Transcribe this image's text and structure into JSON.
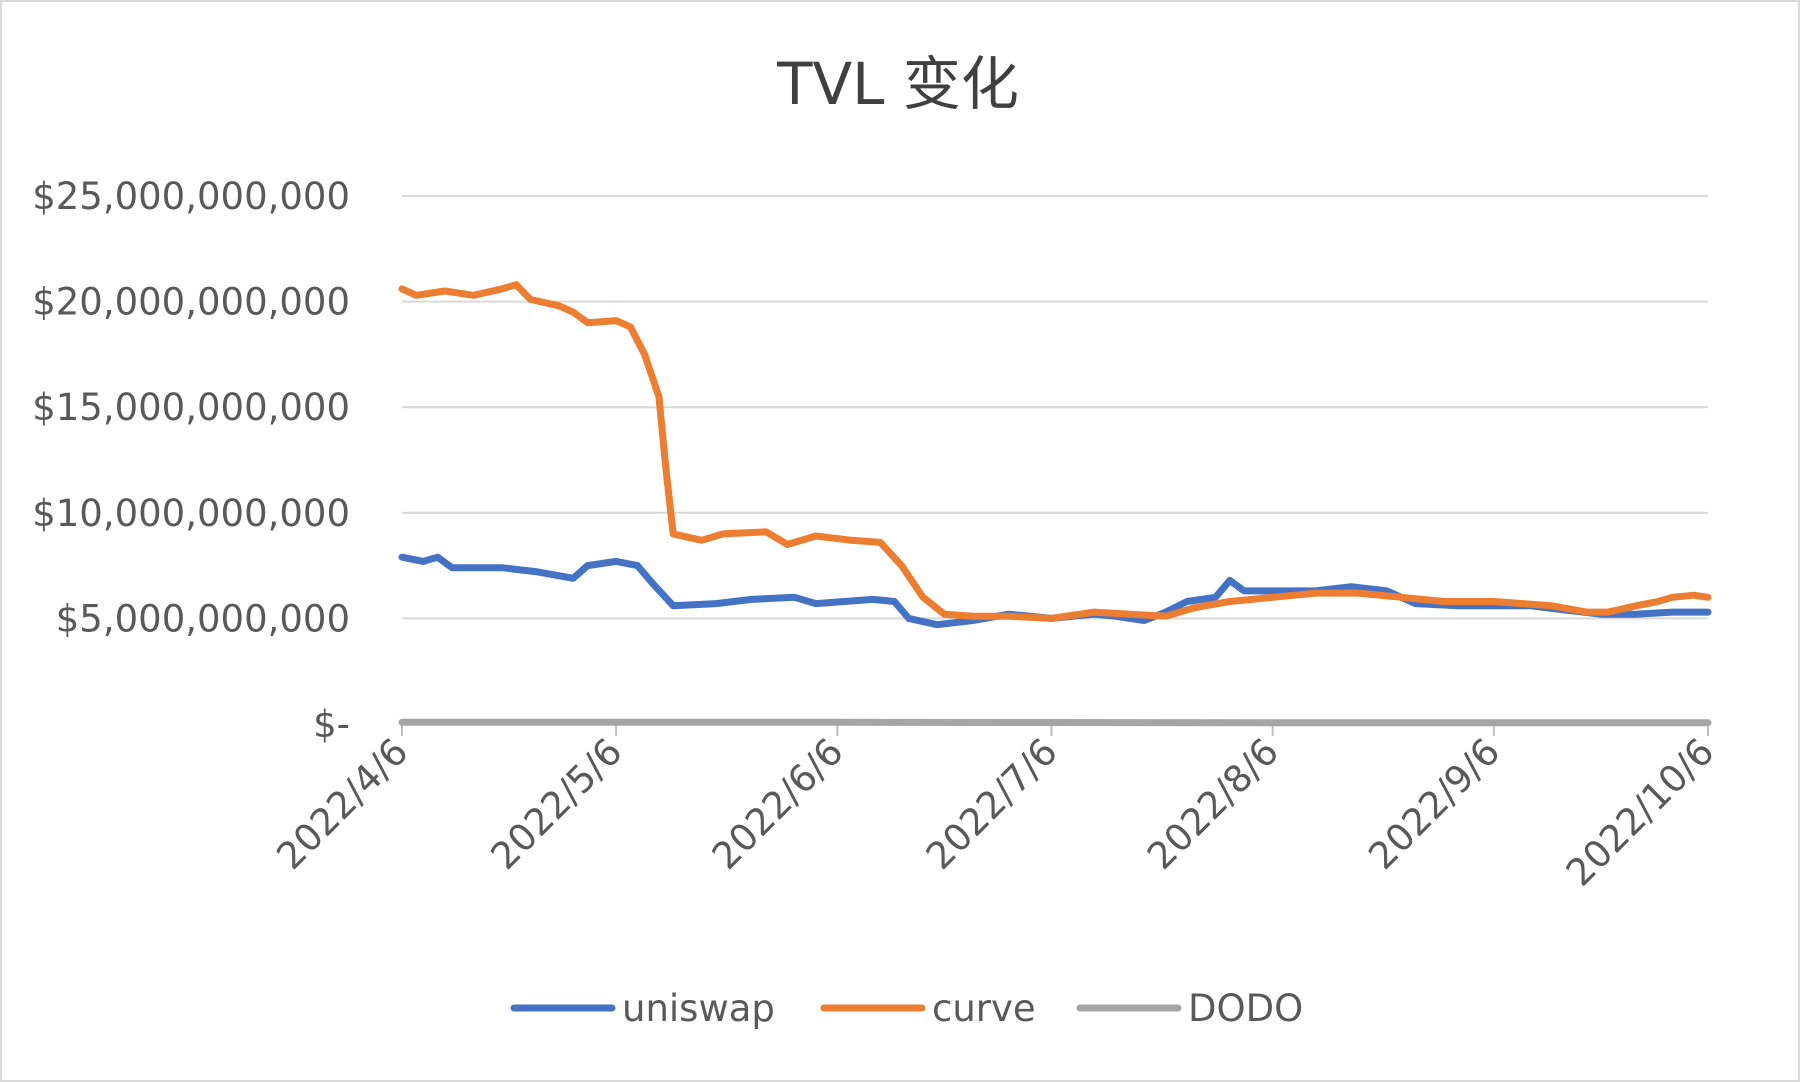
{
  "chart_data": {
    "type": "line",
    "title": "TVL 变化",
    "xlabel": "",
    "ylabel": "",
    "x_start": "2022/4/6",
    "x_end": "2022/10/6",
    "ylim": [
      0,
      25000000000
    ],
    "y_ticks": [
      0,
      5000000000,
      10000000000,
      15000000000,
      20000000000,
      25000000000
    ],
    "y_tick_labels": [
      "$-",
      "$5,000,000,000",
      "$10,000,000,000",
      "$15,000,000,000",
      "$20,000,000,000",
      "$25,000,000,000"
    ],
    "x_tick_labels": [
      "2022/4/6",
      "2022/5/6",
      "2022/6/6",
      "2022/7/6",
      "2022/8/6",
      "2022/9/6",
      "2022/10/6"
    ],
    "grid": true,
    "legend_position": "bottom",
    "series": [
      {
        "name": "uniswap",
        "color": "#4472C4",
        "points": [
          [
            "2022/4/6",
            7900000000
          ],
          [
            "2022/4/9",
            7700000000
          ],
          [
            "2022/4/11",
            7900000000
          ],
          [
            "2022/4/13",
            7400000000
          ],
          [
            "2022/4/20",
            7400000000
          ],
          [
            "2022/4/25",
            7200000000
          ],
          [
            "2022/4/30",
            6900000000
          ],
          [
            "2022/5/2",
            7500000000
          ],
          [
            "2022/5/6",
            7700000000
          ],
          [
            "2022/5/9",
            7500000000
          ],
          [
            "2022/5/11",
            6700000000
          ],
          [
            "2022/5/14",
            5600000000
          ],
          [
            "2022/5/20",
            5700000000
          ],
          [
            "2022/5/25",
            5900000000
          ],
          [
            "2022/5/31",
            6000000000
          ],
          [
            "2022/6/3",
            5700000000
          ],
          [
            "2022/6/7",
            5800000000
          ],
          [
            "2022/6/11",
            5900000000
          ],
          [
            "2022/6/14",
            5800000000
          ],
          [
            "2022/6/16",
            5000000000
          ],
          [
            "2022/6/20",
            4700000000
          ],
          [
            "2022/6/25",
            4900000000
          ],
          [
            "2022/6/30",
            5200000000
          ],
          [
            "2022/7/6",
            5000000000
          ],
          [
            "2022/7/12",
            5200000000
          ],
          [
            "2022/7/15",
            5100000000
          ],
          [
            "2022/7/19",
            4900000000
          ],
          [
            "2022/7/22",
            5300000000
          ],
          [
            "2022/7/25",
            5800000000
          ],
          [
            "2022/7/29",
            6000000000
          ],
          [
            "2022/7/31",
            6800000000
          ],
          [
            "2022/8/2",
            6300000000
          ],
          [
            "2022/8/6",
            6300000000
          ],
          [
            "2022/8/12",
            6300000000
          ],
          [
            "2022/8/17",
            6500000000
          ],
          [
            "2022/8/22",
            6300000000
          ],
          [
            "2022/8/26",
            5700000000
          ],
          [
            "2022/9/1",
            5600000000
          ],
          [
            "2022/9/6",
            5600000000
          ],
          [
            "2022/9/11",
            5600000000
          ],
          [
            "2022/9/16",
            5400000000
          ],
          [
            "2022/9/21",
            5200000000
          ],
          [
            "2022/9/26",
            5200000000
          ],
          [
            "2022/10/1",
            5300000000
          ],
          [
            "2022/10/6",
            5300000000
          ]
        ]
      },
      {
        "name": "curve",
        "color": "#ED7D31",
        "points": [
          [
            "2022/4/6",
            20600000000
          ],
          [
            "2022/4/8",
            20300000000
          ],
          [
            "2022/4/12",
            20500000000
          ],
          [
            "2022/4/16",
            20300000000
          ],
          [
            "2022/4/20",
            20600000000
          ],
          [
            "2022/4/22",
            20800000000
          ],
          [
            "2022/4/24",
            20100000000
          ],
          [
            "2022/4/28",
            19800000000
          ],
          [
            "2022/4/30",
            19500000000
          ],
          [
            "2022/5/2",
            19000000000
          ],
          [
            "2022/5/6",
            19100000000
          ],
          [
            "2022/5/8",
            18800000000
          ],
          [
            "2022/5/10",
            17500000000
          ],
          [
            "2022/5/12",
            15500000000
          ],
          [
            "2022/5/13",
            12000000000
          ],
          [
            "2022/5/14",
            9000000000
          ],
          [
            "2022/5/18",
            8700000000
          ],
          [
            "2022/5/21",
            9000000000
          ],
          [
            "2022/5/27",
            9100000000
          ],
          [
            "2022/5/30",
            8500000000
          ],
          [
            "2022/6/3",
            8900000000
          ],
          [
            "2022/6/8",
            8700000000
          ],
          [
            "2022/6/12",
            8600000000
          ],
          [
            "2022/6/15",
            7500000000
          ],
          [
            "2022/6/18",
            6000000000
          ],
          [
            "2022/6/21",
            5200000000
          ],
          [
            "2022/6/25",
            5100000000
          ],
          [
            "2022/6/30",
            5100000000
          ],
          [
            "2022/7/6",
            5000000000
          ],
          [
            "2022/7/12",
            5300000000
          ],
          [
            "2022/7/17",
            5200000000
          ],
          [
            "2022/7/22",
            5100000000
          ],
          [
            "2022/7/26",
            5500000000
          ],
          [
            "2022/7/31",
            5800000000
          ],
          [
            "2022/8/6",
            6000000000
          ],
          [
            "2022/8/12",
            6200000000
          ],
          [
            "2022/8/18",
            6200000000
          ],
          [
            "2022/8/24",
            6000000000
          ],
          [
            "2022/8/30",
            5800000000
          ],
          [
            "2022/9/6",
            5800000000
          ],
          [
            "2022/9/10",
            5700000000
          ],
          [
            "2022/9/14",
            5600000000
          ],
          [
            "2022/9/19",
            5300000000
          ],
          [
            "2022/9/22",
            5300000000
          ],
          [
            "2022/9/26",
            5600000000
          ],
          [
            "2022/9/29",
            5800000000
          ],
          [
            "2022/10/1",
            6000000000
          ],
          [
            "2022/10/4",
            6100000000
          ],
          [
            "2022/10/6",
            6000000000
          ]
        ]
      },
      {
        "name": "DODO",
        "color": "#A5A5A5",
        "points": [
          [
            "2022/4/6",
            80000000
          ],
          [
            "2022/5/6",
            80000000
          ],
          [
            "2022/6/6",
            80000000
          ],
          [
            "2022/7/6",
            70000000
          ],
          [
            "2022/8/6",
            60000000
          ],
          [
            "2022/9/6",
            60000000
          ],
          [
            "2022/10/6",
            60000000
          ]
        ]
      }
    ]
  }
}
